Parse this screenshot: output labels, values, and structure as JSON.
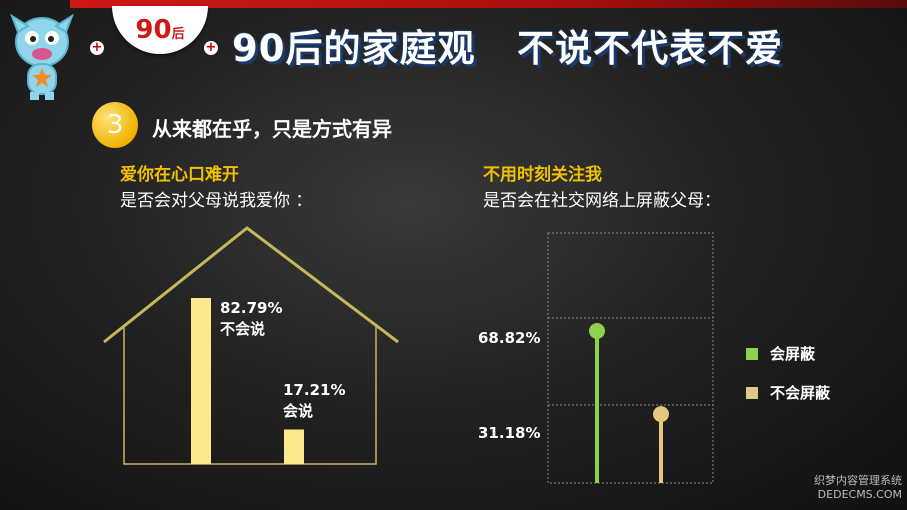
{
  "header": {
    "badge_number": "90",
    "badge_suffix": "后",
    "title": "90后的家庭观   不说不代表不爱"
  },
  "section": {
    "number": "3",
    "title": "从来都在乎，只是方式有异"
  },
  "colors": {
    "left_bar": "#fde88e",
    "green": "#8ed14d",
    "tan": "#e2c77c",
    "house_line": "#c8b85c",
    "accent": "#f2c200"
  },
  "left_panel": {
    "subtitle": "爱你在心口难开",
    "question": "是否会对父母说我爱你 ："
  },
  "right_panel": {
    "subtitle": "不用时刻关注我",
    "question": "是否会在社交网络上屏蔽父母："
  },
  "chart_data": [
    {
      "type": "bar",
      "categories": [
        "不会说",
        "会说"
      ],
      "values": [
        82.79,
        17.21
      ],
      "value_labels": [
        "82.79%",
        "17.21%"
      ]
    },
    {
      "type": "bar",
      "categories": [
        "会屏蔽",
        "不会屏蔽"
      ],
      "values": [
        68.82,
        31.18
      ],
      "value_labels": [
        "68.82%",
        "31.18%"
      ],
      "legend": [
        "会屏蔽",
        "不会屏蔽"
      ],
      "grid": true
    }
  ],
  "watermark": {
    "line1": "织梦内容管理系统",
    "line2": "DEDECMS.COM"
  }
}
